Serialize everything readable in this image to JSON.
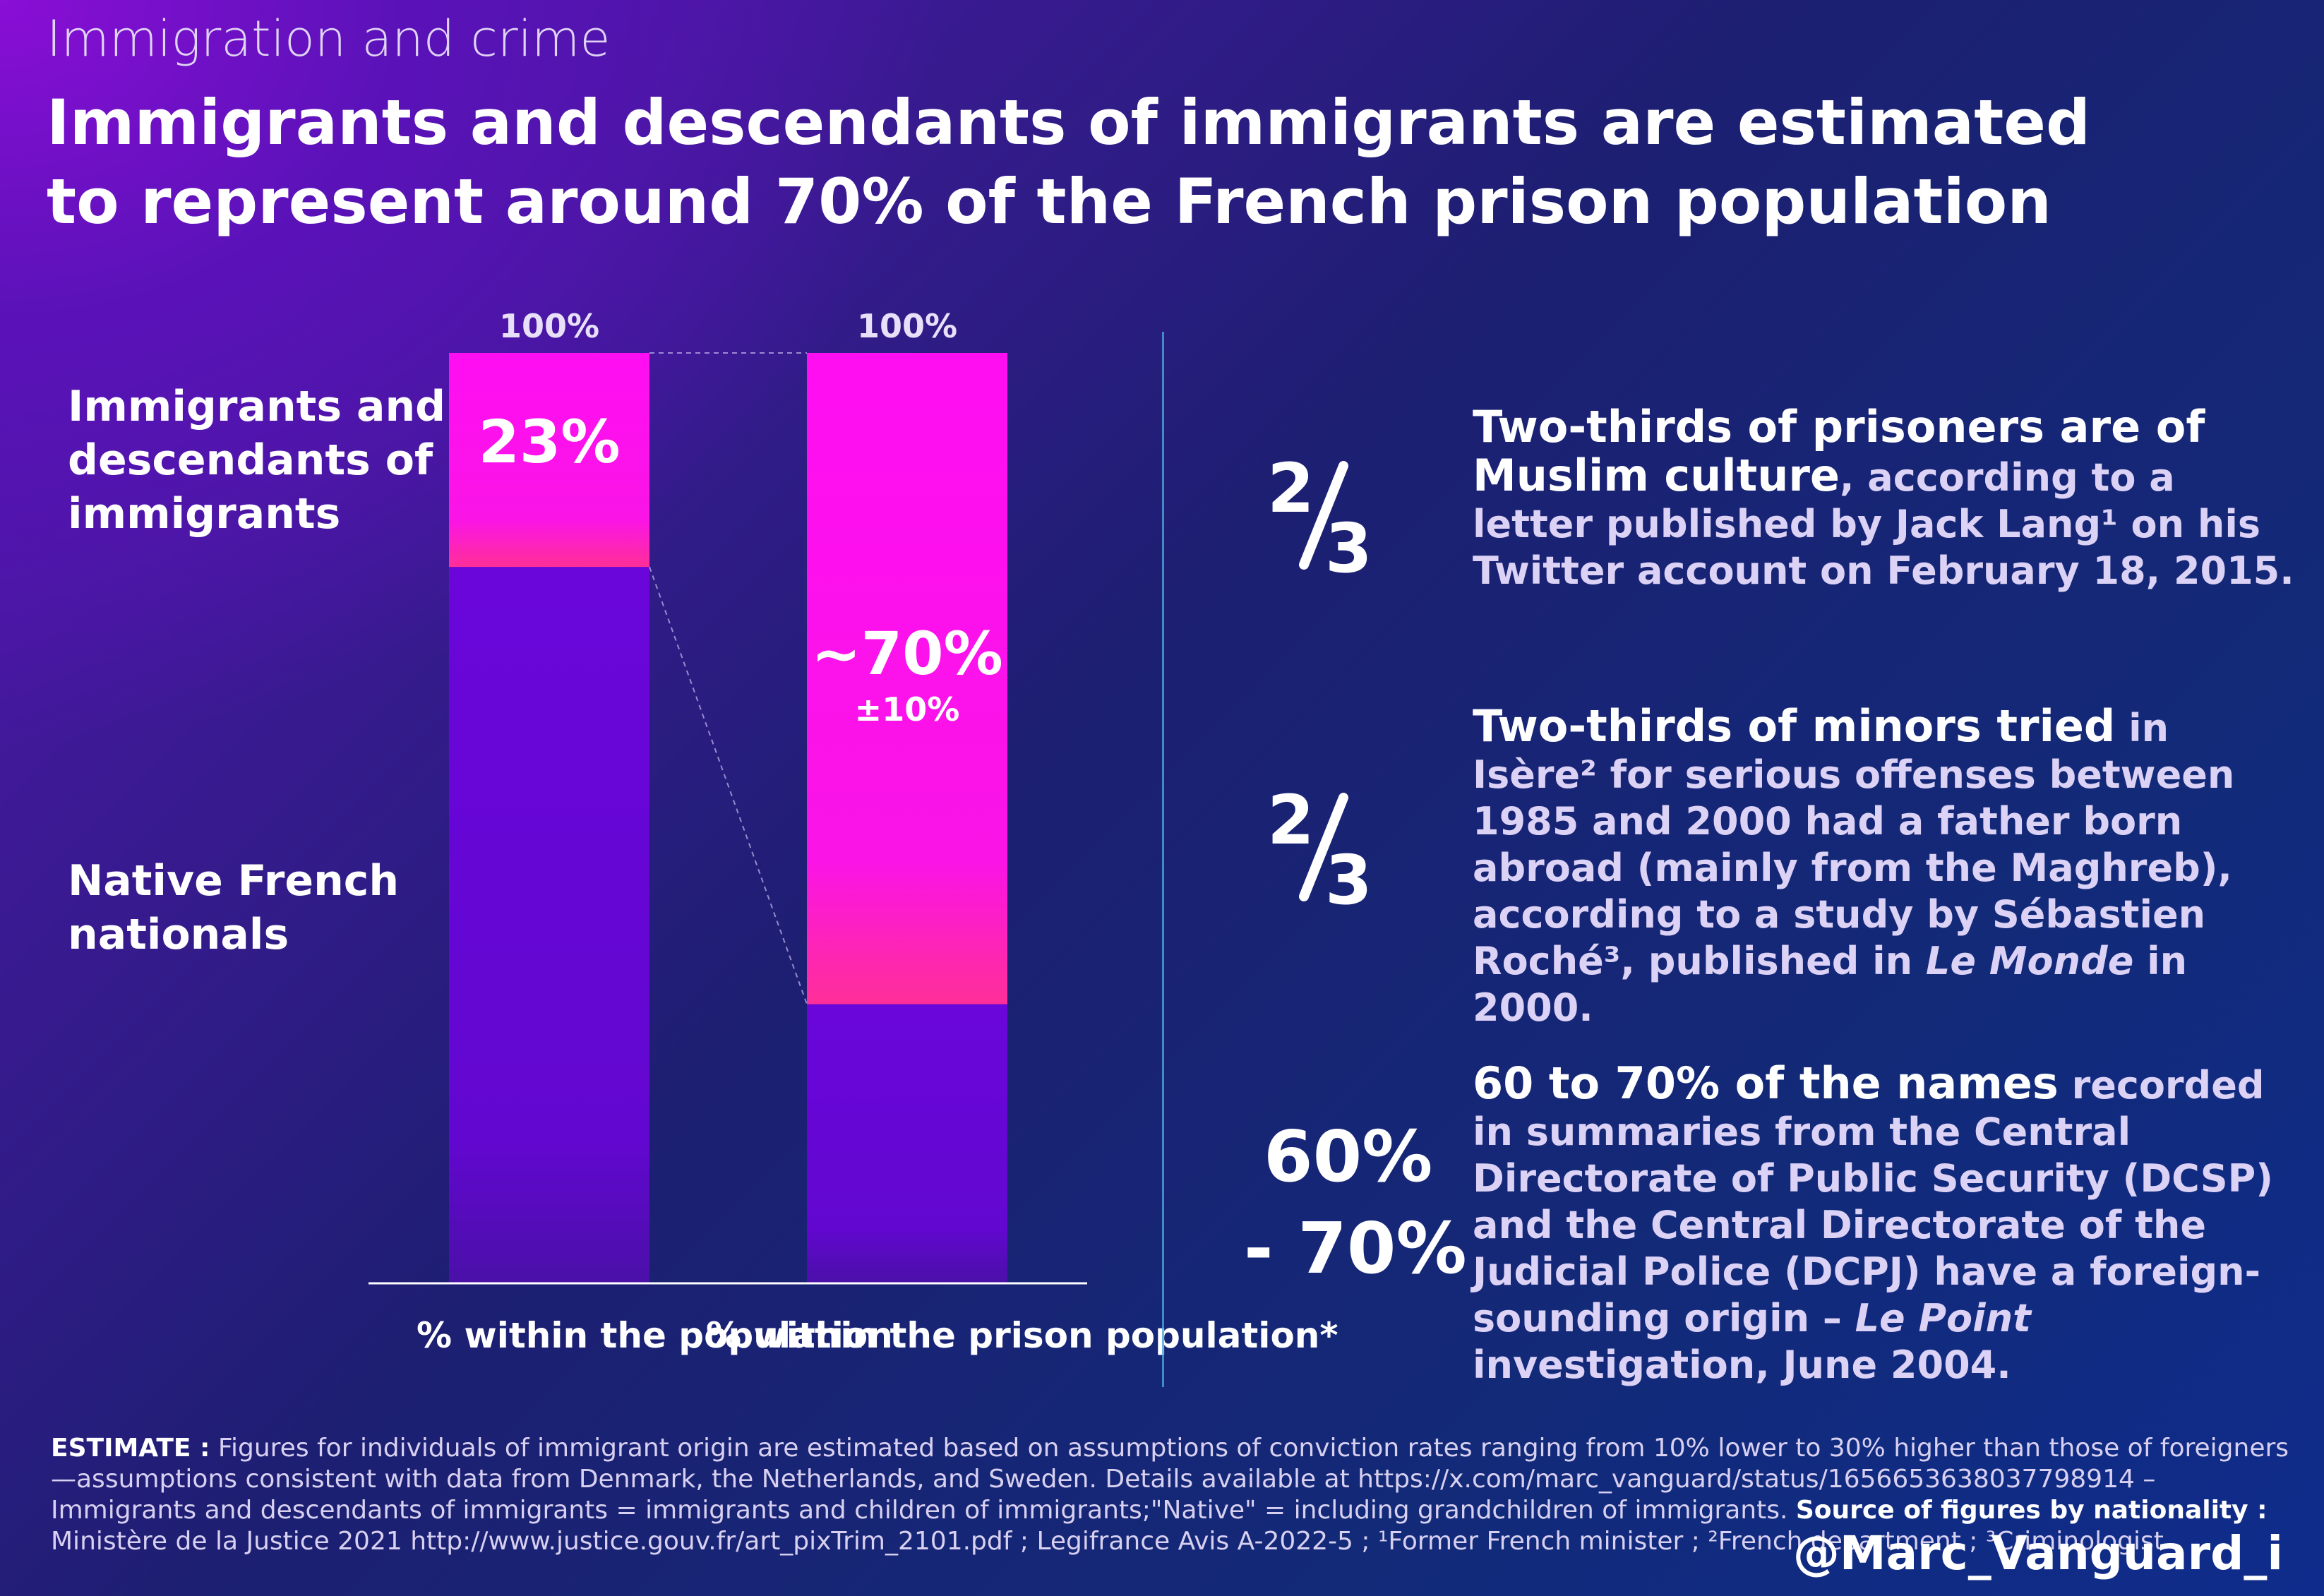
{
  "kicker": "Immigration and crime",
  "headline": "Immigrants and descendants of immigrants are estimated to represent around 70% of the French prison population",
  "legend": {
    "immigrants": "Immigrants and descendants of immigrants",
    "native": "Native French nationals"
  },
  "chart_data": {
    "type": "bar",
    "stacked": true,
    "categories": [
      "% within the population",
      "% within the prison population*"
    ],
    "series": [
      {
        "name": "Immigrants and descendants of immigrants",
        "values": [
          23,
          70
        ]
      },
      {
        "name": "Native French nationals",
        "values": [
          77,
          30
        ]
      }
    ],
    "ylim": [
      0,
      100
    ],
    "top_labels": [
      "100%",
      "100%"
    ],
    "bar_labels": [
      "23%",
      "~70%"
    ],
    "bar_sublabels": [
      "",
      "±10%"
    ],
    "colors": {
      "immigrants": "#ff12ee",
      "immigrants_bottom": "#ff2c9a",
      "native": "#6a08d6"
    }
  },
  "stats": [
    {
      "figure": "2/3",
      "highlight": "Two-thirds of prisoners are of Muslim culture",
      "text": ", according to a letter published by Jack Lang¹ on his Twitter account on February 18, 2015."
    },
    {
      "figure": "2/3",
      "highlight": "Two-thirds of minors tried",
      "text_before_em": " in Isère² for serious offenses between 1985 and 2000 had a father born abroad (mainly from the Maghreb), according to a study by Sébastien Roché³, published in ",
      "em": "Le Monde",
      "text_after_em": " in 2000."
    },
    {
      "figure_top": "60%",
      "figure_bottom": "- 70%",
      "highlight": "60 to 70% of the names",
      "text_before_em": " recorded in summaries from the Central Directorate of Public Security (DCSP) and the Central Directorate of the Judicial Police (DCPJ) have a foreign-sounding origin – ",
      "em": "Le Point",
      "text_after_em": " investigation, June 2004."
    }
  ],
  "footnote": {
    "estimate_label": "ESTIMATE :",
    "estimate_text": " Figures for individuals of immigrant origin are estimated based on assumptions of conviction rates ranging from 10% lower to 30% higher than those of foreigners—assumptions consistent with data from Denmark, the Netherlands, and Sweden. Details available at https://x.com/marc_vanguard/status/1656653638037798914 – Immigrants and descendants of immigrants = immigrants and children of immigrants;\"Native\" = including grandchildren of immigrants. ",
    "source_label": "Source of figures by nationality :",
    "source_text": " Ministère de la Justice 2021 http://www.justice.gouv.fr/art_pixTrim_2101.pdf ; Legifrance Avis A-2022-5 ; ¹Former French minister ; ²French department ; ³Criminologist"
  },
  "handle": "@Marc_Vanguard_i"
}
